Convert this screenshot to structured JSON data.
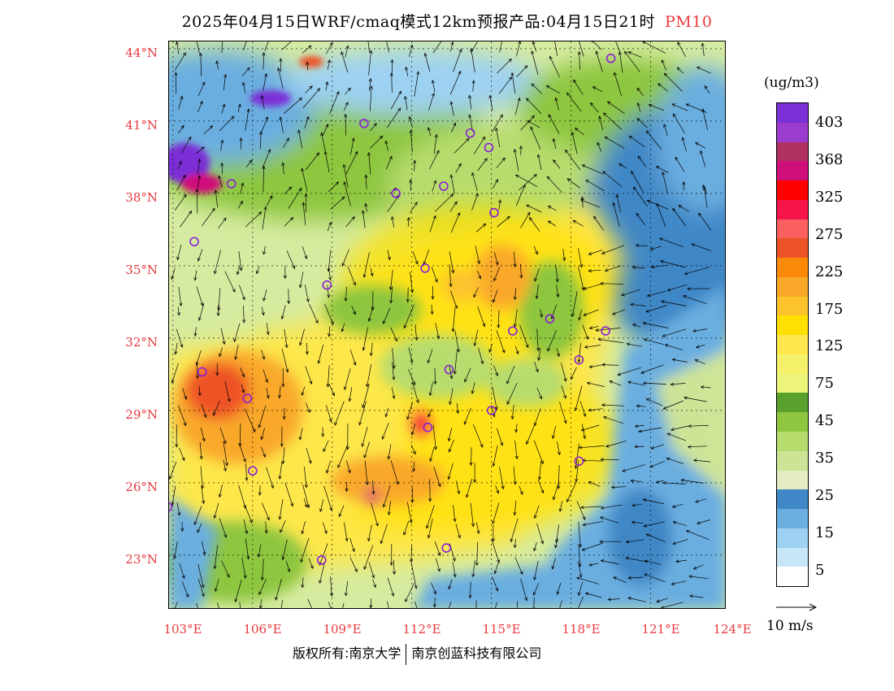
{
  "title": {
    "main": "2025年04月15日WRF/cmaq模式12km预报产品:04月15日21时",
    "species": "PM10"
  },
  "axes": {
    "lat_labels": [
      "44°N",
      "41°N",
      "38°N",
      "35°N",
      "32°N",
      "29°N",
      "26°N",
      "23°N"
    ],
    "lon_labels": [
      "103°E",
      "106°E",
      "109°E",
      "112°E",
      "115°E",
      "118°E",
      "121°E",
      "124°E"
    ]
  },
  "legend": {
    "unit": "(ug/m3)",
    "colors": [
      "#7b2fd6",
      "#9b3ccf",
      "#b03060",
      "#d0107a",
      "#ff0000",
      "#f5154a",
      "#fc5f5f",
      "#ee5328",
      "#fa8a08",
      "#f9a82a",
      "#fdc32d",
      "#ffe000",
      "#fde74c",
      "#f5f06a",
      "#ecf47a",
      "#5aa02c",
      "#8ec63f",
      "#b7dc6e",
      "#cde497",
      "#e3ecc3",
      "#3f87c6",
      "#6baee0",
      "#9dd1f2",
      "#c7e6f7",
      "#ffffff"
    ],
    "labels": [
      "403",
      "368",
      "325",
      "275",
      "225",
      "175",
      "125",
      "75",
      "45",
      "35",
      "25",
      "15",
      "5"
    ]
  },
  "wind_reference": {
    "label": "10 m/s",
    "speed": 10
  },
  "stations": [
    {
      "lon": 119.5,
      "lat": 43.6
    },
    {
      "lon": 110.2,
      "lat": 40.9
    },
    {
      "lon": 114.2,
      "lat": 40.5
    },
    {
      "lon": 114.9,
      "lat": 39.9
    },
    {
      "lon": 105.2,
      "lat": 38.4
    },
    {
      "lon": 111.4,
      "lat": 38.0
    },
    {
      "lon": 113.2,
      "lat": 38.3
    },
    {
      "lon": 115.1,
      "lat": 37.2
    },
    {
      "lon": 103.8,
      "lat": 36.0
    },
    {
      "lon": 112.5,
      "lat": 34.9
    },
    {
      "lon": 108.8,
      "lat": 34.2
    },
    {
      "lon": 117.2,
      "lat": 32.8
    },
    {
      "lon": 115.8,
      "lat": 32.3
    },
    {
      "lon": 119.3,
      "lat": 32.3
    },
    {
      "lon": 118.3,
      "lat": 31.1
    },
    {
      "lon": 104.1,
      "lat": 30.6
    },
    {
      "lon": 113.4,
      "lat": 30.7
    },
    {
      "lon": 105.8,
      "lat": 29.5
    },
    {
      "lon": 115.0,
      "lat": 29.0
    },
    {
      "lon": 112.6,
      "lat": 28.3
    },
    {
      "lon": 106.0,
      "lat": 26.5
    },
    {
      "lon": 118.3,
      "lat": 26.9
    },
    {
      "lon": 102.8,
      "lat": 25.0
    },
    {
      "lon": 108.6,
      "lat": 22.8
    },
    {
      "lon": 113.3,
      "lat": 23.3
    }
  ],
  "footer": {
    "left": "版权所有:南京大学",
    "right": "南京创蓝科技有限公司"
  }
}
